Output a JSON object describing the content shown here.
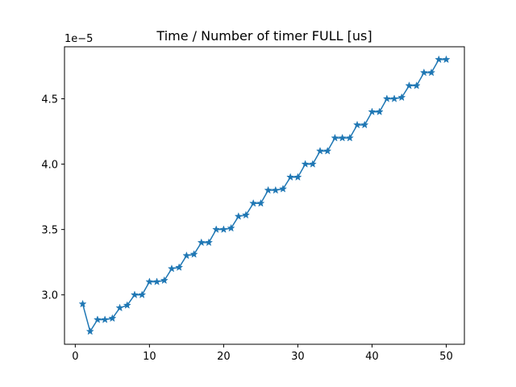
{
  "chart_data": {
    "type": "line",
    "title": "Time / Number of timer FULL [us]",
    "xlabel": "",
    "ylabel": "",
    "y_offset_label": "1e−5",
    "x_ticks": [
      0,
      10,
      20,
      30,
      40,
      50
    ],
    "x_tick_labels": [
      "0",
      "10",
      "20",
      "30",
      "40",
      "50"
    ],
    "y_ticks": [
      3e-05,
      3.5e-05,
      4e-05,
      4.5e-05
    ],
    "y_tick_labels": [
      "3.0",
      "3.5",
      "4.0",
      "4.5"
    ],
    "xlim": [
      -1.45,
      52.45
    ],
    "ylim": [
      2.622e-05,
      4.898e-05
    ],
    "grid": false,
    "marker": "star",
    "color": "#1f77b4",
    "series": [
      {
        "x": [
          1,
          2,
          3,
          4,
          5,
          6,
          7,
          8,
          9,
          10,
          11,
          12,
          13,
          14,
          15,
          16,
          17,
          18,
          19,
          20,
          21,
          22,
          23,
          24,
          25,
          26,
          27,
          28,
          29,
          30,
          31,
          32,
          33,
          34,
          35,
          36,
          37,
          38,
          39,
          40,
          41,
          42,
          43,
          44,
          45,
          46,
          47,
          48,
          49,
          50
        ],
        "values": [
          2.93e-05,
          2.72e-05,
          2.81e-05,
          2.81e-05,
          2.82e-05,
          2.9e-05,
          2.92e-05,
          3e-05,
          3e-05,
          3.1e-05,
          3.1e-05,
          3.11e-05,
          3.2e-05,
          3.21e-05,
          3.3e-05,
          3.31e-05,
          3.4e-05,
          3.4e-05,
          3.5e-05,
          3.5e-05,
          3.51e-05,
          3.6e-05,
          3.61e-05,
          3.7e-05,
          3.7e-05,
          3.8e-05,
          3.8e-05,
          3.81e-05,
          3.9e-05,
          3.9e-05,
          4e-05,
          4e-05,
          4.1e-05,
          4.1e-05,
          4.2e-05,
          4.2e-05,
          4.2e-05,
          4.3e-05,
          4.3e-05,
          4.4e-05,
          4.4e-05,
          4.5e-05,
          4.5e-05,
          4.51e-05,
          4.6e-05,
          4.6e-05,
          4.7e-05,
          4.7e-05,
          4.8e-05,
          4.8e-05
        ]
      }
    ]
  }
}
